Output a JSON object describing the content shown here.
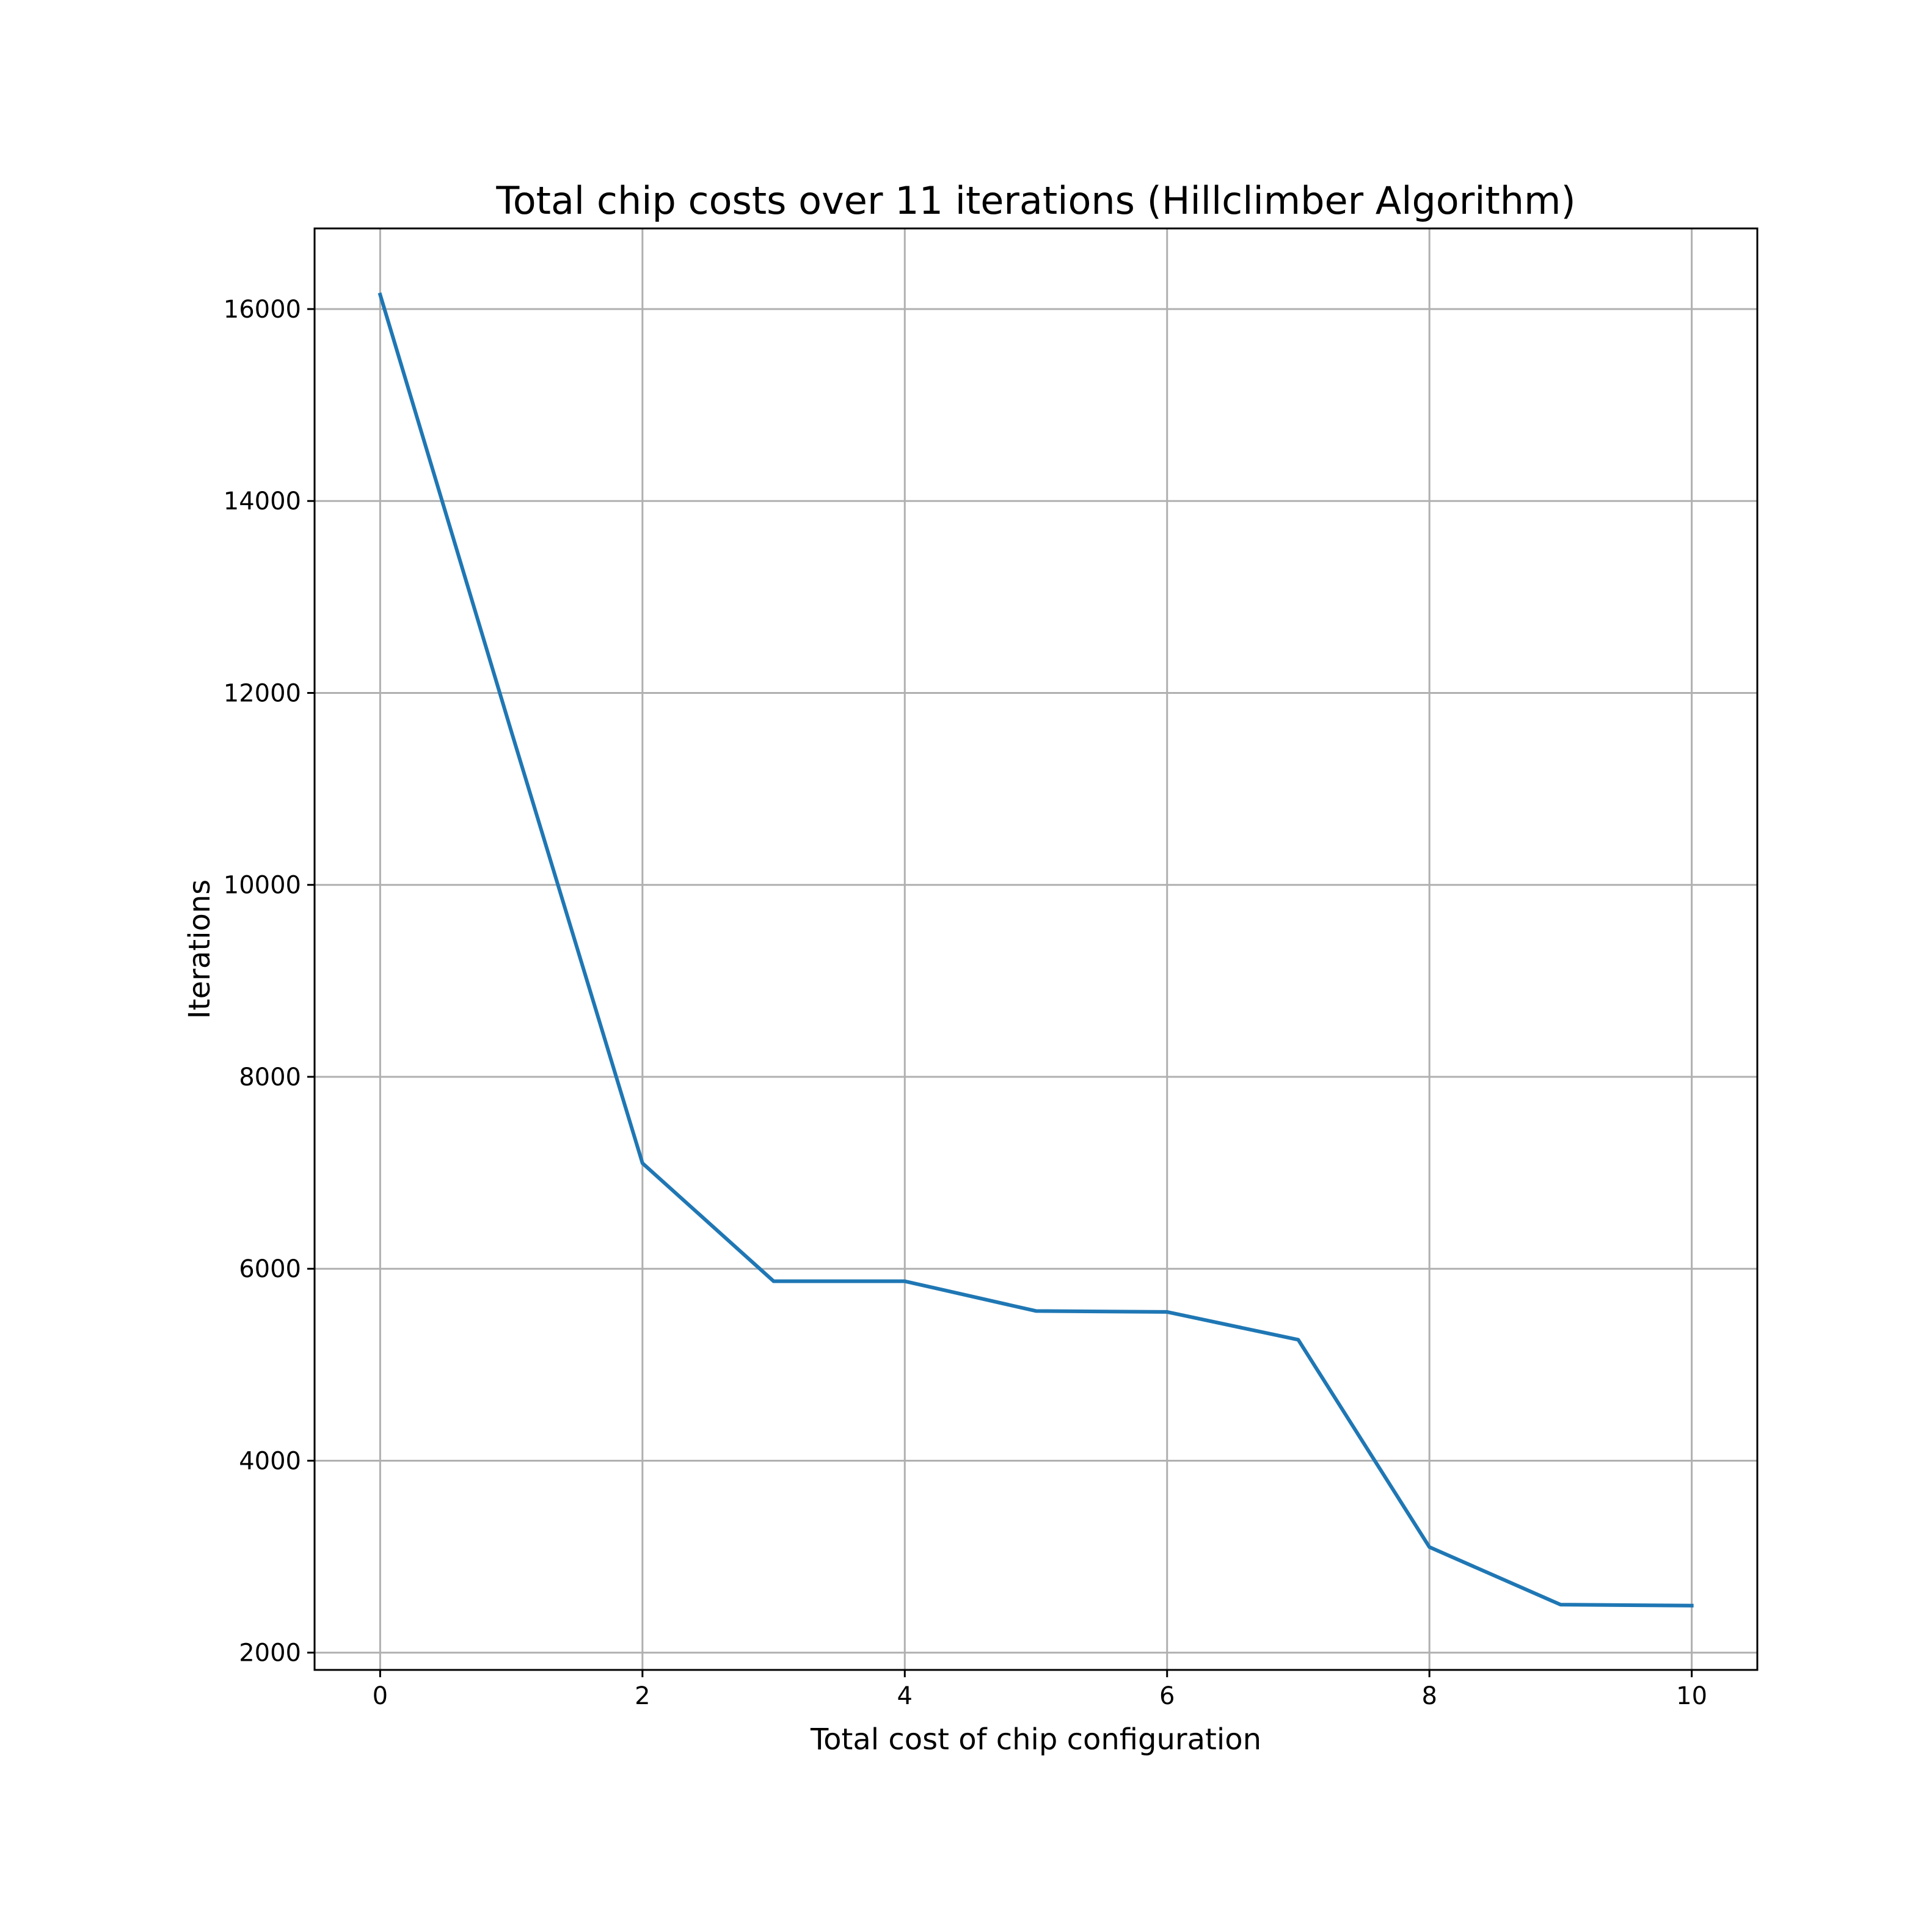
{
  "chart_data": {
    "type": "line",
    "title": "Total chip costs over 11 iterations (Hillclimber Algorithm)",
    "xlabel": "Total cost of chip configuration",
    "ylabel": "Iterations",
    "xlim": [
      -0.5,
      10.5
    ],
    "ylim": [
      1820,
      16840
    ],
    "xticks": [
      0,
      2,
      4,
      6,
      8,
      10
    ],
    "xtick_labels": [
      "0",
      "2",
      "4",
      "6",
      "8",
      "10"
    ],
    "yticks": [
      2000,
      4000,
      6000,
      8000,
      10000,
      12000,
      14000,
      16000
    ],
    "ytick_labels": [
      "2000",
      "4000",
      "6000",
      "8000",
      "10000",
      "12000",
      "14000",
      "16000"
    ],
    "grid": true,
    "line_color": "#1f77b4",
    "grid_color": "#b0b0b0",
    "x": [
      0,
      1,
      2,
      3,
      4,
      5,
      6,
      7,
      8,
      9,
      10
    ],
    "y": [
      16150,
      11600,
      7100,
      5870,
      5870,
      5560,
      5550,
      5260,
      3100,
      2500,
      2490
    ]
  }
}
